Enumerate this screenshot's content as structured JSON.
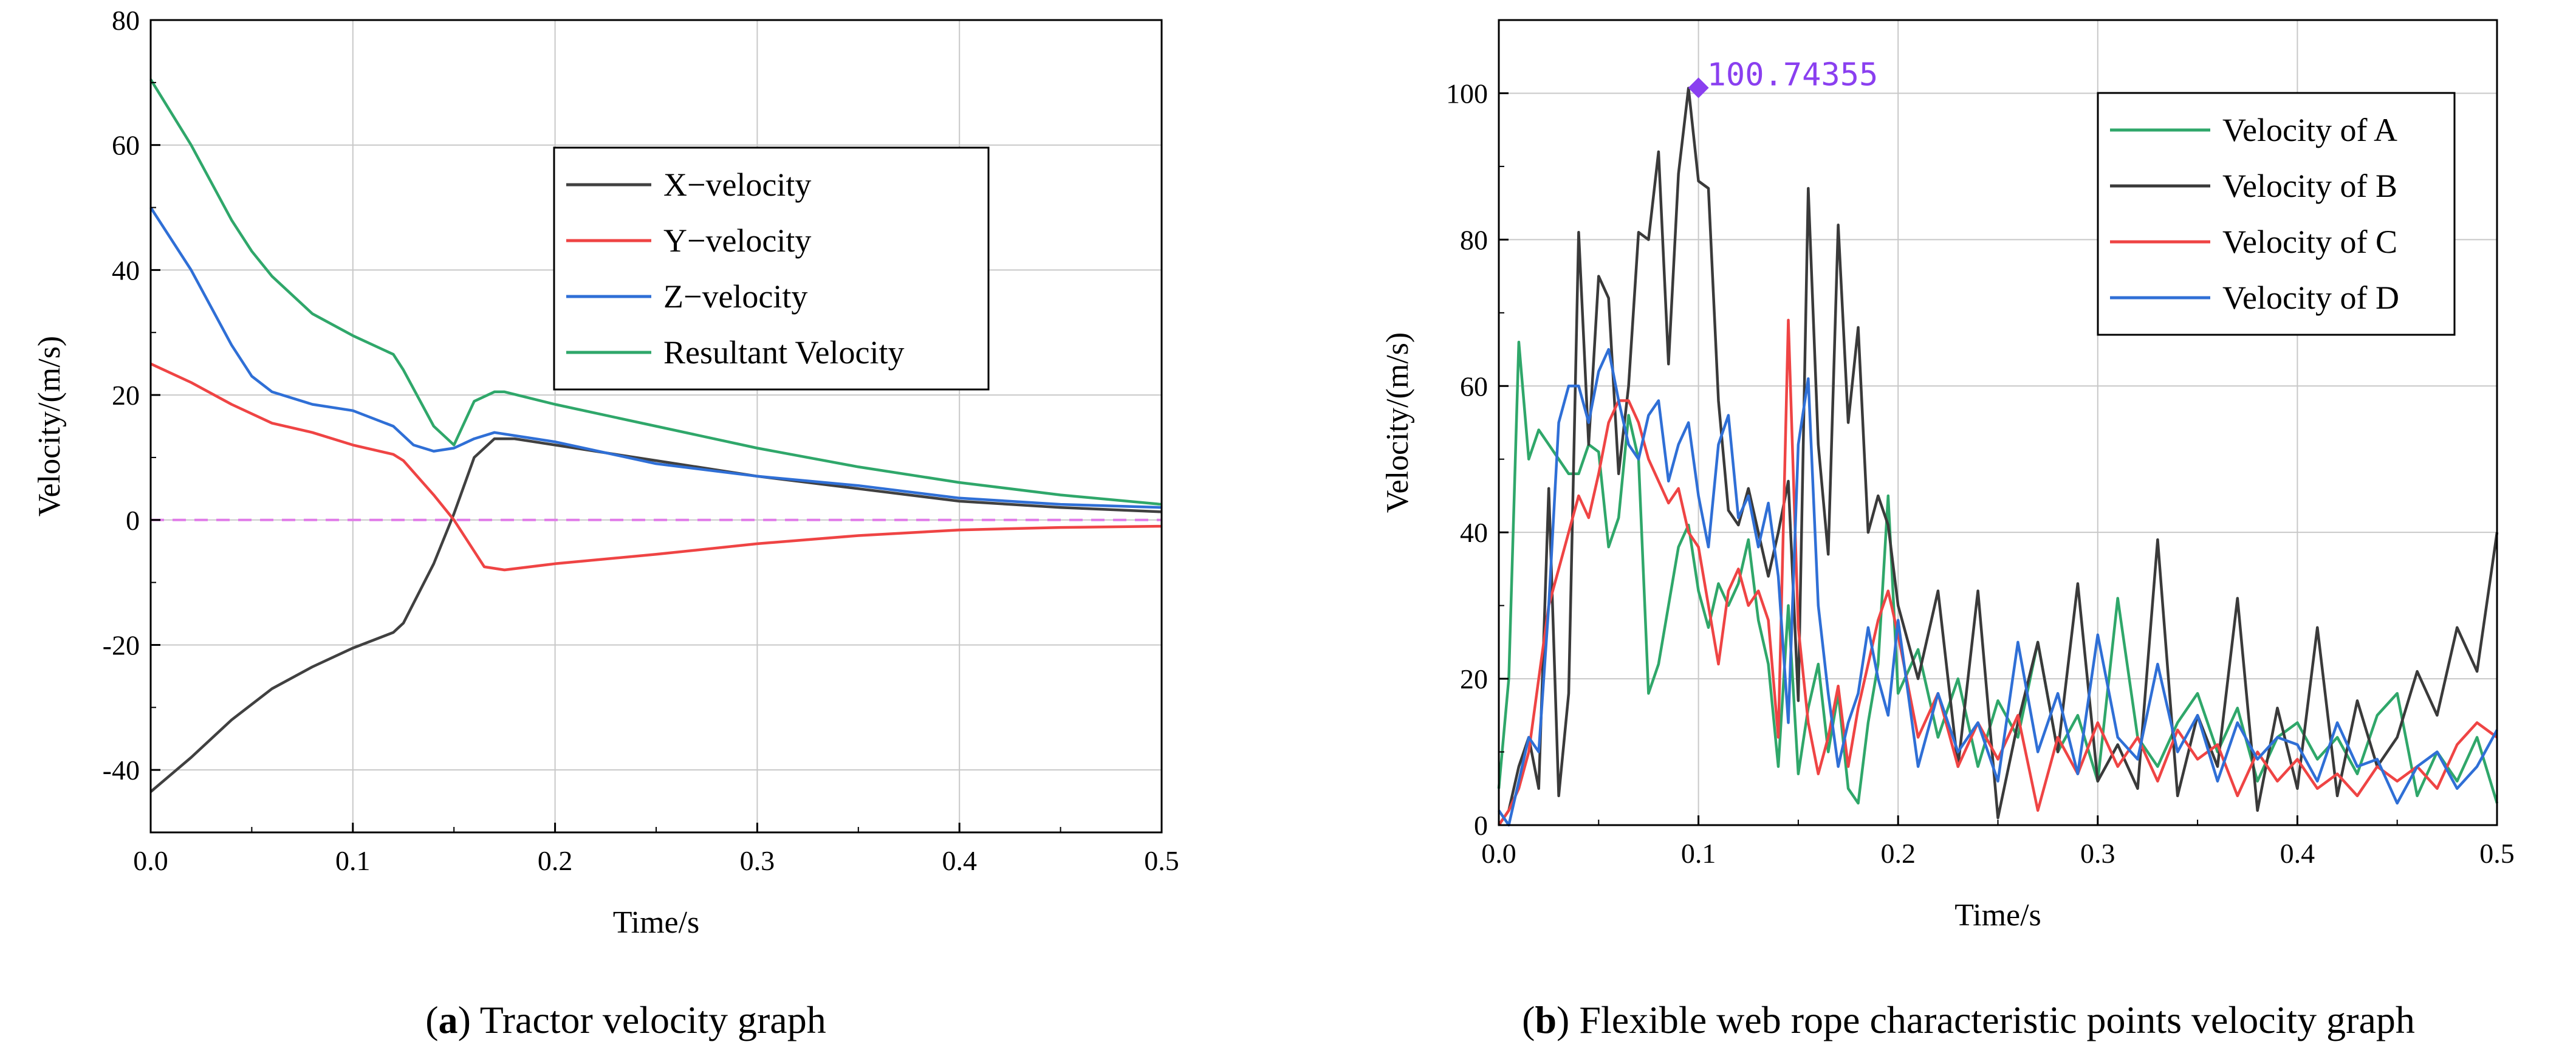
{
  "captions": {
    "a": {
      "letter": "a",
      "text": " Tractor velocity graph"
    },
    "b": {
      "letter": "b",
      "text": " Flexible web rope characteristic points velocity graph"
    }
  },
  "chart_data": [
    {
      "id": "a",
      "type": "line",
      "title": "",
      "xlabel": "Time/s",
      "ylabel": "Velocity/(m/s)",
      "xlim": [
        0,
        0.5
      ],
      "ylim": [
        -50,
        80
      ],
      "xticks": [
        0.0,
        0.1,
        0.2,
        0.3,
        0.4,
        0.5
      ],
      "xtick_labels": [
        "0.0",
        "0.1",
        "0.2",
        "0.3",
        "0.4",
        "0.5"
      ],
      "yticks": [
        -40,
        -20,
        0,
        20,
        40,
        60,
        80
      ],
      "ytick_labels": [
        "-40",
        "-20",
        "0",
        "20",
        "40",
        "60",
        "80"
      ],
      "grid": true,
      "legend_position": "upper-center-right",
      "reference_line": {
        "y": 0,
        "color": "#e07be8",
        "style": "dashed"
      },
      "series": [
        {
          "name": "X−velocity",
          "color": "#404040",
          "x": [
            0,
            0.02,
            0.04,
            0.06,
            0.08,
            0.1,
            0.12,
            0.125,
            0.14,
            0.15,
            0.16,
            0.17,
            0.18,
            0.2,
            0.25,
            0.3,
            0.35,
            0.4,
            0.45,
            0.5
          ],
          "y": [
            -43.5,
            -38,
            -32,
            -27,
            -23.5,
            -20.5,
            -18,
            -16.5,
            -7,
            1,
            10,
            13,
            13,
            12,
            9.5,
            7,
            5,
            3,
            2,
            1.3
          ]
        },
        {
          "name": "Y−velocity",
          "color": "#ef4444",
          "x": [
            0,
            0.02,
            0.04,
            0.06,
            0.08,
            0.1,
            0.12,
            0.125,
            0.14,
            0.15,
            0.16,
            0.165,
            0.175,
            0.2,
            0.25,
            0.3,
            0.35,
            0.4,
            0.45,
            0.5
          ],
          "y": [
            25,
            22,
            18.5,
            15.5,
            14,
            12,
            10.5,
            9.5,
            4,
            0,
            -5,
            -7.5,
            -8,
            -7,
            -5.5,
            -3.8,
            -2.5,
            -1.6,
            -1.2,
            -1
          ]
        },
        {
          "name": "Z−velocity",
          "color": "#2f6fd6",
          "x": [
            0,
            0.02,
            0.04,
            0.05,
            0.06,
            0.08,
            0.1,
            0.12,
            0.13,
            0.14,
            0.15,
            0.16,
            0.17,
            0.2,
            0.25,
            0.3,
            0.35,
            0.4,
            0.45,
            0.5
          ],
          "y": [
            50,
            40,
            28,
            23,
            20.5,
            18.5,
            17.5,
            15,
            12,
            11,
            11.5,
            13,
            14,
            12.5,
            9,
            7,
            5.5,
            3.5,
            2.5,
            2
          ]
        },
        {
          "name": "Resultant Velocity",
          "color": "#2fa76a",
          "x": [
            0,
            0.02,
            0.04,
            0.05,
            0.06,
            0.08,
            0.1,
            0.12,
            0.125,
            0.14,
            0.15,
            0.16,
            0.17,
            0.175,
            0.2,
            0.25,
            0.3,
            0.35,
            0.4,
            0.45,
            0.5
          ],
          "y": [
            70.5,
            60,
            48,
            43,
            39,
            33,
            29.5,
            26.5,
            24,
            15,
            12,
            19,
            20.5,
            20.5,
            18.5,
            15,
            11.5,
            8.5,
            6,
            4,
            2.5
          ]
        }
      ]
    },
    {
      "id": "b",
      "type": "line",
      "title": "",
      "xlabel": "Time/s",
      "ylabel": "Velocity/(m/s)",
      "xlim": [
        0,
        0.5
      ],
      "ylim": [
        0,
        110
      ],
      "xticks": [
        0.0,
        0.1,
        0.2,
        0.3,
        0.4,
        0.5
      ],
      "xtick_labels": [
        "0.0",
        "0.1",
        "0.2",
        "0.3",
        "0.4",
        "0.5"
      ],
      "yticks": [
        0,
        20,
        40,
        60,
        80,
        100
      ],
      "ytick_labels": [
        "0",
        "20",
        "40",
        "60",
        "80",
        "100"
      ],
      "grid": true,
      "legend_position": "upper-right",
      "annotation": {
        "x": 0.1,
        "y": 100.74355,
        "text": "100.74355",
        "color": "#8a3ff0"
      },
      "series": [
        {
          "name": "Velocity of A",
          "color": "#2fa76a",
          "x": [
            0,
            0.005,
            0.01,
            0.015,
            0.02,
            0.025,
            0.03,
            0.035,
            0.04,
            0.045,
            0.05,
            0.055,
            0.06,
            0.065,
            0.07,
            0.075,
            0.08,
            0.085,
            0.09,
            0.095,
            0.1,
            0.105,
            0.11,
            0.115,
            0.12,
            0.125,
            0.13,
            0.135,
            0.14,
            0.145,
            0.15,
            0.155,
            0.16,
            0.165,
            0.17,
            0.175,
            0.18,
            0.185,
            0.19,
            0.195,
            0.2,
            0.21,
            0.22,
            0.23,
            0.24,
            0.25,
            0.26,
            0.27,
            0.28,
            0.29,
            0.3,
            0.31,
            0.32,
            0.33,
            0.34,
            0.35,
            0.36,
            0.37,
            0.38,
            0.39,
            0.4,
            0.41,
            0.42,
            0.43,
            0.44,
            0.45,
            0.46,
            0.47,
            0.48,
            0.49,
            0.5
          ],
          "y": [
            5,
            20,
            66,
            50,
            54,
            52,
            50,
            48,
            48,
            52,
            51,
            38,
            42,
            56,
            50,
            18,
            22,
            30,
            38,
            41,
            32,
            27,
            33,
            30,
            33,
            39,
            28,
            22,
            8,
            30,
            7,
            16,
            22,
            10,
            18,
            5,
            3,
            14,
            22,
            45,
            18,
            24,
            12,
            20,
            8,
            17,
            12,
            25,
            10,
            15,
            6,
            31,
            12,
            8,
            14,
            18,
            10,
            16,
            6,
            12,
            14,
            9,
            12,
            7,
            15,
            18,
            4,
            10,
            6,
            12,
            3
          ]
        },
        {
          "name": "Velocity of B",
          "color": "#3a3a3a",
          "x": [
            0,
            0.005,
            0.01,
            0.015,
            0.02,
            0.025,
            0.03,
            0.035,
            0.04,
            0.045,
            0.05,
            0.055,
            0.06,
            0.065,
            0.07,
            0.075,
            0.08,
            0.085,
            0.09,
            0.095,
            0.1,
            0.105,
            0.11,
            0.115,
            0.12,
            0.125,
            0.13,
            0.135,
            0.14,
            0.145,
            0.15,
            0.155,
            0.16,
            0.165,
            0.17,
            0.175,
            0.18,
            0.185,
            0.19,
            0.195,
            0.2,
            0.21,
            0.22,
            0.23,
            0.24,
            0.25,
            0.26,
            0.27,
            0.28,
            0.29,
            0.3,
            0.31,
            0.32,
            0.33,
            0.34,
            0.35,
            0.36,
            0.37,
            0.38,
            0.39,
            0.4,
            0.41,
            0.42,
            0.43,
            0.44,
            0.45,
            0.46,
            0.47,
            0.48,
            0.49,
            0.5
          ],
          "y": [
            0,
            2,
            8,
            12,
            5,
            46,
            4,
            18,
            81,
            52,
            75,
            72,
            48,
            60,
            81,
            80,
            92,
            63,
            89,
            100.7,
            88,
            87,
            58,
            43,
            41,
            46,
            40,
            34,
            40,
            47,
            17,
            87,
            52,
            37,
            82,
            55,
            68,
            40,
            45,
            41,
            30,
            20,
            32,
            8,
            32,
            1,
            14,
            25,
            10,
            33,
            6,
            11,
            5,
            39,
            4,
            15,
            8,
            31,
            2,
            16,
            5,
            27,
            4,
            17,
            8,
            12,
            21,
            15,
            27,
            21,
            40
          ]
        },
        {
          "name": "Velocity of C",
          "color": "#ef4444",
          "x": [
            0,
            0.005,
            0.01,
            0.015,
            0.02,
            0.025,
            0.03,
            0.035,
            0.04,
            0.045,
            0.05,
            0.055,
            0.06,
            0.065,
            0.07,
            0.075,
            0.08,
            0.085,
            0.09,
            0.095,
            0.1,
            0.105,
            0.11,
            0.115,
            0.12,
            0.125,
            0.13,
            0.135,
            0.14,
            0.145,
            0.15,
            0.155,
            0.16,
            0.165,
            0.17,
            0.175,
            0.18,
            0.185,
            0.19,
            0.195,
            0.2,
            0.21,
            0.22,
            0.23,
            0.24,
            0.25,
            0.26,
            0.27,
            0.28,
            0.29,
            0.3,
            0.31,
            0.32,
            0.33,
            0.34,
            0.35,
            0.36,
            0.37,
            0.38,
            0.39,
            0.4,
            0.41,
            0.42,
            0.43,
            0.44,
            0.45,
            0.46,
            0.47,
            0.48,
            0.49,
            0.5
          ],
          "y": [
            0,
            2,
            5,
            10,
            20,
            30,
            35,
            40,
            45,
            42,
            48,
            55,
            58,
            58,
            55,
            50,
            47,
            44,
            46,
            40,
            38,
            30,
            22,
            32,
            35,
            30,
            32,
            28,
            12,
            69,
            27,
            14,
            7,
            12,
            19,
            8,
            16,
            22,
            28,
            32,
            26,
            12,
            18,
            8,
            14,
            9,
            15,
            2,
            12,
            7,
            14,
            8,
            12,
            6,
            13,
            9,
            11,
            4,
            10,
            6,
            9,
            5,
            7,
            4,
            8,
            6,
            8,
            5,
            11,
            14,
            12
          ]
        },
        {
          "name": "Velocity of D",
          "color": "#2f6fd6",
          "x": [
            0,
            0.005,
            0.01,
            0.015,
            0.02,
            0.025,
            0.03,
            0.035,
            0.04,
            0.045,
            0.05,
            0.055,
            0.06,
            0.065,
            0.07,
            0.075,
            0.08,
            0.085,
            0.09,
            0.095,
            0.1,
            0.105,
            0.11,
            0.115,
            0.12,
            0.125,
            0.13,
            0.135,
            0.14,
            0.145,
            0.15,
            0.155,
            0.16,
            0.165,
            0.17,
            0.175,
            0.18,
            0.185,
            0.19,
            0.195,
            0.2,
            0.21,
            0.22,
            0.23,
            0.24,
            0.25,
            0.26,
            0.27,
            0.28,
            0.29,
            0.3,
            0.31,
            0.32,
            0.33,
            0.34,
            0.35,
            0.36,
            0.37,
            0.38,
            0.39,
            0.4,
            0.41,
            0.42,
            0.43,
            0.44,
            0.45,
            0.46,
            0.47,
            0.48,
            0.49,
            0.5
          ],
          "y": [
            2,
            0,
            6,
            12,
            10,
            30,
            55,
            60,
            60,
            55,
            62,
            65,
            58,
            52,
            50,
            56,
            58,
            47,
            52,
            55,
            45,
            38,
            52,
            56,
            42,
            45,
            38,
            44,
            34,
            14,
            52,
            61,
            30,
            18,
            8,
            14,
            18,
            27,
            20,
            15,
            28,
            8,
            18,
            10,
            14,
            6,
            25,
            10,
            18,
            7,
            26,
            12,
            9,
            22,
            10,
            15,
            6,
            14,
            9,
            12,
            11,
            6,
            14,
            8,
            9,
            3,
            8,
            10,
            5,
            8,
            13
          ]
        }
      ]
    }
  ]
}
